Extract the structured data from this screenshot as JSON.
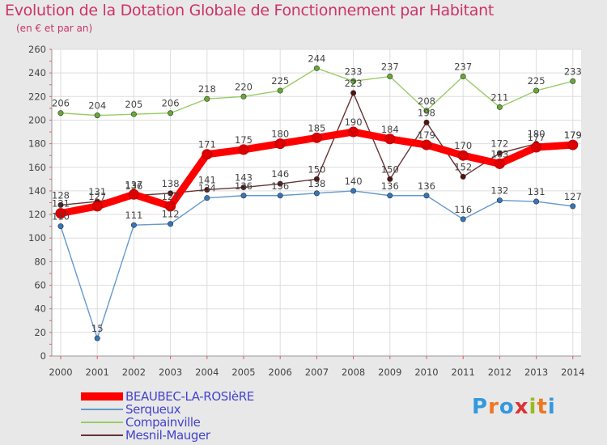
{
  "header": {
    "title": "Evolution de la Dotation Globale de Fonctionnement par Habitant",
    "subtitle": "(en € et par an)"
  },
  "logo": {
    "text": "Proxiti"
  },
  "chart_data": {
    "type": "line",
    "title": "Evolution de la Dotation Globale de Fonctionnement par Habitant",
    "subtitle": "(en € et par an)",
    "xlabel": "",
    "ylabel": "",
    "ylim": [
      0,
      260
    ],
    "yticks": [
      0,
      20,
      40,
      60,
      80,
      100,
      120,
      140,
      160,
      180,
      200,
      220,
      240,
      260
    ],
    "grid": true,
    "legend": "bottom-left",
    "categories": [
      "2000",
      "2001",
      "2002",
      "2003",
      "2004",
      "2005",
      "2006",
      "2007",
      "2008",
      "2009",
      "2010",
      "2011",
      "2012",
      "2013",
      "2014"
    ],
    "series": [
      {
        "name": "BEAUBEC-LA-ROSIèRE",
        "color": "#ff0000",
        "values": [
          121,
          127,
          137,
          127,
          171,
          175,
          180,
          185,
          190,
          184,
          179,
          170,
          163,
          177,
          179
        ],
        "labels": [
          "121",
          "127",
          "137",
          "127",
          "171",
          "175",
          "180",
          "185",
          "190",
          "184",
          "179",
          "170",
          "163",
          "177",
          "179"
        ],
        "emphasis": true
      },
      {
        "name": "Serqueux",
        "color": "#6699cc",
        "values": [
          110,
          15,
          111,
          112,
          134,
          136,
          136,
          138,
          140,
          136,
          136,
          116,
          132,
          131,
          127
        ],
        "labels": [
          "110",
          "15",
          "111",
          "112",
          "134",
          "136",
          "136",
          "138",
          "140",
          "136",
          "136",
          "116",
          "132",
          "131",
          "127"
        ]
      },
      {
        "name": "Compainville",
        "color": "#99cc66",
        "values": [
          206,
          204,
          205,
          206,
          218,
          220,
          225,
          244,
          233,
          237,
          208,
          237,
          211,
          225,
          233
        ],
        "labels": [
          "206",
          "204",
          "205",
          "206",
          "218",
          "220",
          "225",
          "244",
          "233",
          "237",
          "208",
          "237",
          "211",
          "225",
          "233"
        ]
      },
      {
        "name": "Mesnil-Mauger",
        "color": "#663333",
        "values": [
          128,
          131,
          136,
          138,
          141,
          143,
          146,
          150,
          223,
          150,
          198,
          152,
          172,
          180,
          179
        ],
        "labels": [
          "128",
          "131",
          "136",
          "138",
          "141",
          "143",
          "146",
          "150",
          "223",
          "150",
          "198",
          "152",
          "172",
          "180",
          "179"
        ]
      }
    ]
  }
}
